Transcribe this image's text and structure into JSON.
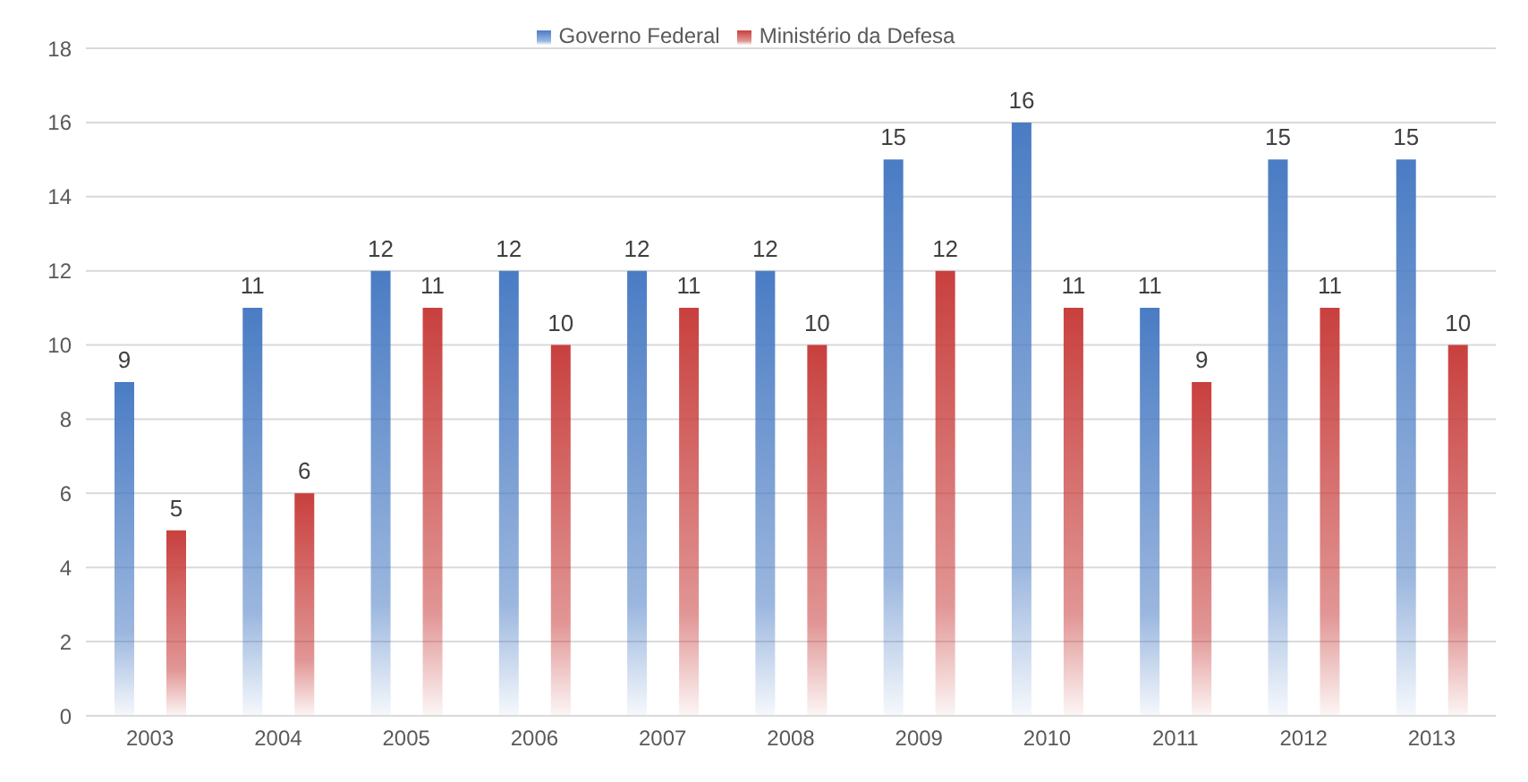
{
  "chart_data": {
    "type": "bar",
    "categories": [
      "2003",
      "2004",
      "2005",
      "2006",
      "2007",
      "2008",
      "2009",
      "2010",
      "2011",
      "2012",
      "2013"
    ],
    "series": [
      {
        "name": "Governo Federal",
        "color": "#4a7cc4",
        "values": [
          9,
          11,
          12,
          12,
          12,
          12,
          15,
          16,
          11,
          15,
          15
        ]
      },
      {
        "name": "Ministério da Defesa",
        "color": "#c8403e",
        "values": [
          5,
          6,
          11,
          10,
          11,
          10,
          12,
          11,
          9,
          11,
          10
        ]
      }
    ],
    "ylim": [
      0,
      18
    ],
    "yticks": [
      0,
      2,
      4,
      6,
      8,
      10,
      12,
      14,
      16,
      18
    ],
    "grid": "y",
    "legend": "top",
    "data_labels": true
  }
}
